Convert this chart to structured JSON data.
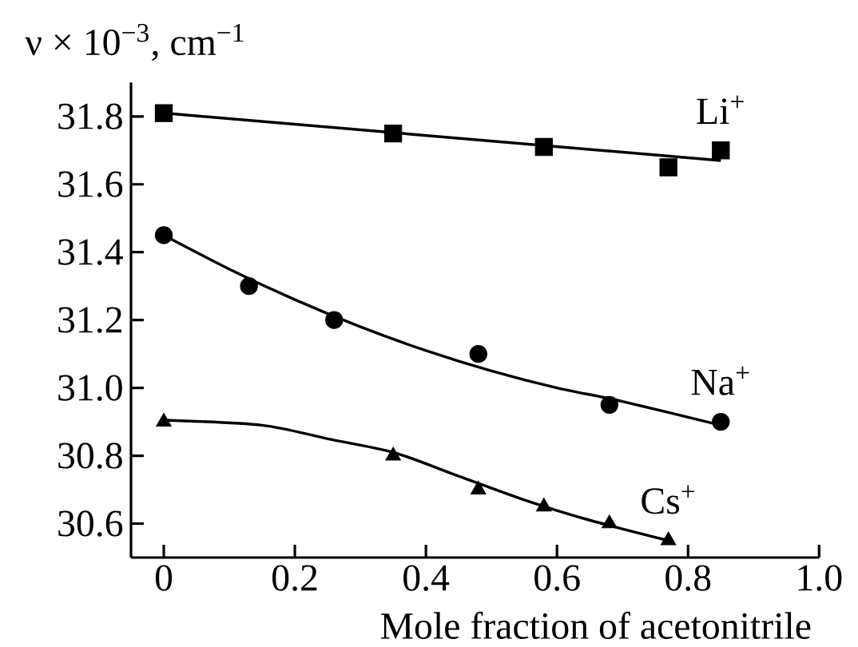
{
  "chart_data": {
    "type": "scatter",
    "xlabel": "Mole fraction of acetonitrile",
    "ylabel": "ν × 10$^{−3}$, cm$^{−1}$",
    "xlim": [
      -0.05,
      1.0
    ],
    "ylim": [
      30.5,
      31.9
    ],
    "xticks": [
      {
        "value": 0,
        "label": "0"
      },
      0.2,
      0.4,
      0.6,
      0.8,
      {
        "value": 1,
        "label": "1.0"
      }
    ],
    "yticks": [
      30.6,
      30.8,
      {
        "value": 31,
        "label": "31.0"
      },
      31.2,
      31.4,
      31.6,
      31.8
    ],
    "series": [
      {
        "name": "Li$^{+}$",
        "marker": "square",
        "color": "#000000",
        "x": [
          0,
          0.35,
          0.58,
          0.77,
          0.85
        ],
        "values": [
          31.81,
          31.75,
          31.71,
          31.65,
          31.7
        ]
      },
      {
        "type": "line",
        "marker": "none",
        "color": "#000000",
        "x": [
          0,
          0.85
        ],
        "values": [
          31.81,
          31.67
        ]
      },
      {
        "name": "Na$^{+}$",
        "marker": "circle",
        "color": "#000000",
        "x": [
          0,
          0.13,
          0.26,
          0.48,
          0.68,
          0.85
        ],
        "values": [
          31.45,
          31.3,
          31.2,
          31.1,
          30.95,
          30.9
        ]
      },
      {
        "type": "line",
        "marker": "none",
        "color": "#000000",
        "x": [
          0,
          0.1,
          0.2,
          0.3,
          0.4,
          0.5,
          0.6,
          0.7,
          0.85
        ],
        "values": [
          31.45,
          31.35,
          31.26,
          31.18,
          31.11,
          31.05,
          31.0,
          30.96,
          30.89
        ]
      },
      {
        "name": "Cs$^{+}$",
        "marker": "triangle",
        "color": "#000000",
        "x": [
          0,
          0.35,
          0.48,
          0.58,
          0.68,
          0.77
        ],
        "values": [
          30.9,
          30.8,
          30.7,
          30.65,
          30.6,
          30.55
        ]
      },
      {
        "type": "line",
        "marker": "none",
        "color": "#000000",
        "x": [
          0,
          0.15,
          0.25,
          0.35,
          0.45,
          0.55,
          0.65,
          0.77
        ],
        "values": [
          30.905,
          30.89,
          30.85,
          30.81,
          30.74,
          30.67,
          30.61,
          30.55
        ]
      }
    ]
  }
}
